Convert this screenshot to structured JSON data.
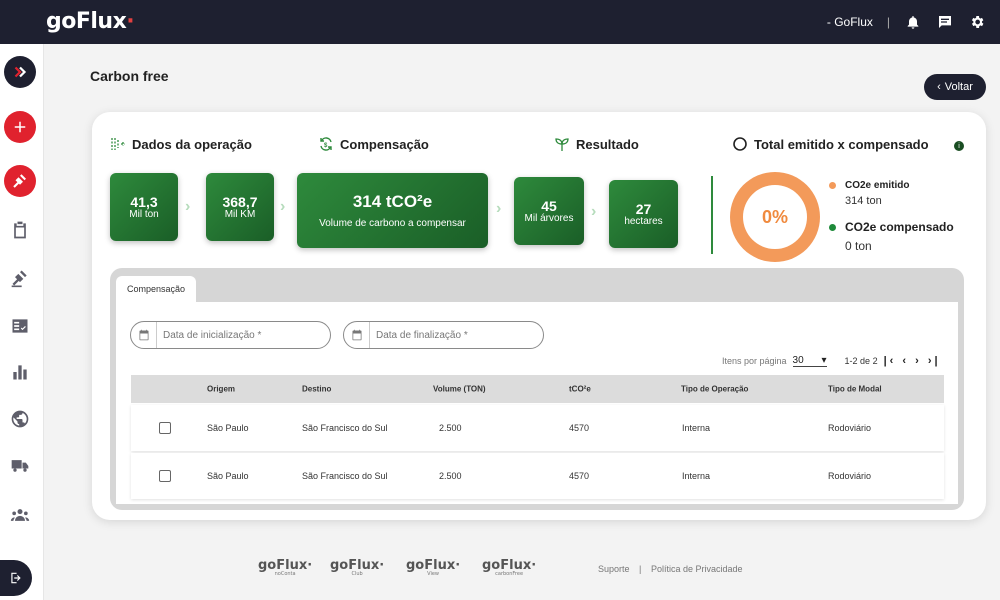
{
  "header": {
    "logo": "goFlux",
    "user": "- GoFlux",
    "separator": "|"
  },
  "page": {
    "title": "Carbon free",
    "back_label": "Voltar"
  },
  "sections": {
    "dados": "Dados da operação",
    "compensacao": "Compensação",
    "resultado": "Resultado",
    "total": "Total emitido x compensado"
  },
  "stats": {
    "ton_value": "41,3",
    "ton_label": "Mil ton",
    "km_value": "368,7",
    "km_label": "Mil KM",
    "co2_value": "314 tCO²e",
    "co2_label": "Volume de carbono a compensar",
    "trees_value": "45",
    "trees_label": "Mil árvores",
    "hectares_value": "27",
    "hectares_label": "hectares"
  },
  "donut": {
    "percent_label": "0%",
    "compensated_fraction": 0,
    "emitted_label": "CO2e emitido",
    "emitted_value": "314 ton",
    "compensated_label": "CO2e compensado",
    "compensated_value": "0 ton",
    "emitted_color": "#f39a5a",
    "compensated_color": "#1e8a3a"
  },
  "table_panel": {
    "tab_label": "Compensação",
    "start_placeholder": "Data de inicialização *",
    "end_placeholder": "Data de finalização *",
    "per_page_label": "Itens por página",
    "per_page_value": "30",
    "range_label": "1-2 de 2",
    "columns": [
      "Origem",
      "Destino",
      "Volume (TON)",
      "tCO²e",
      "Tipo de Operação",
      "Tipo de Modal"
    ],
    "rows": [
      [
        "São Paulo",
        "São Francisco do Sul",
        "2.500",
        "4570",
        "Interna",
        "Rodoviário"
      ],
      [
        "São Paulo",
        "São Francisco do Sul",
        "2.500",
        "4570",
        "Interna",
        "Rodoviário"
      ]
    ]
  },
  "footer": {
    "logos": [
      {
        "name": "goFlux",
        "sub": "noConta"
      },
      {
        "name": "goFlux",
        "sub": "Club"
      },
      {
        "name": "goFlux",
        "sub": "View"
      },
      {
        "name": "goFlux",
        "sub": "carbonFree"
      }
    ],
    "suporte": "Suporte",
    "sep": "|",
    "privacidade": "Política de Privacidade"
  },
  "colors": {
    "brand_dark": "#1e2030",
    "accent_red": "#e0222e",
    "green": "#2e8a3c",
    "orange": "#f39a5a"
  }
}
